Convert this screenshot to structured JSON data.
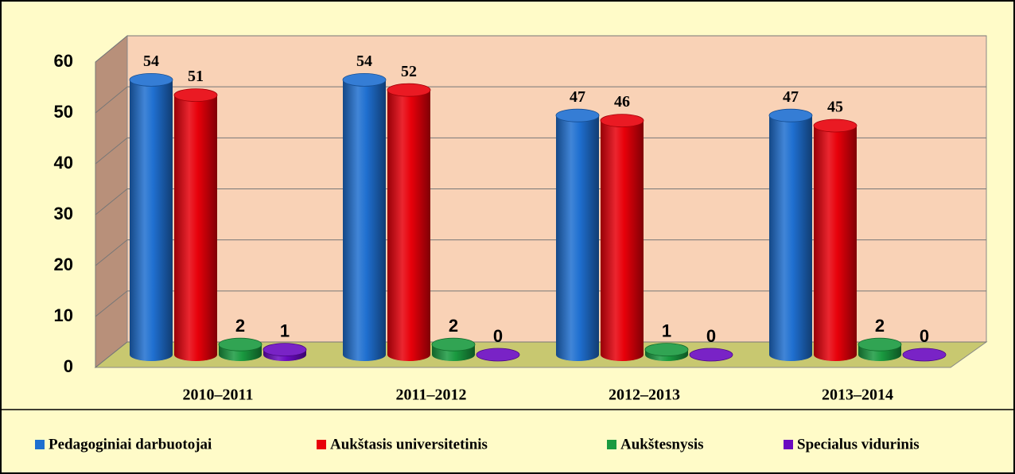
{
  "chart_data": {
    "type": "bar",
    "categories": [
      "2010–2011",
      "2011–2012",
      "2012–2013",
      "2013–2014"
    ],
    "series": [
      {
        "name": "Pedagoginiai darbuotojai",
        "color": "#1f6fd0",
        "values": [
          54,
          54,
          47,
          47
        ]
      },
      {
        "name": "Aukštasis universitetinis",
        "color": "#e8000a",
        "values": [
          51,
          52,
          46,
          45
        ]
      },
      {
        "name": "Aukštesnysis",
        "color": "#1a9a40",
        "values": [
          2,
          2,
          1,
          2
        ]
      },
      {
        "name": "Specialus vidurinis",
        "color": "#6a0ac0",
        "values": [
          1,
          0,
          0,
          0
        ]
      }
    ],
    "ylim": [
      0,
      60
    ],
    "yticks": [
      0,
      10,
      20,
      30,
      40,
      50,
      60
    ],
    "grid": true,
    "legend": "bottom"
  }
}
